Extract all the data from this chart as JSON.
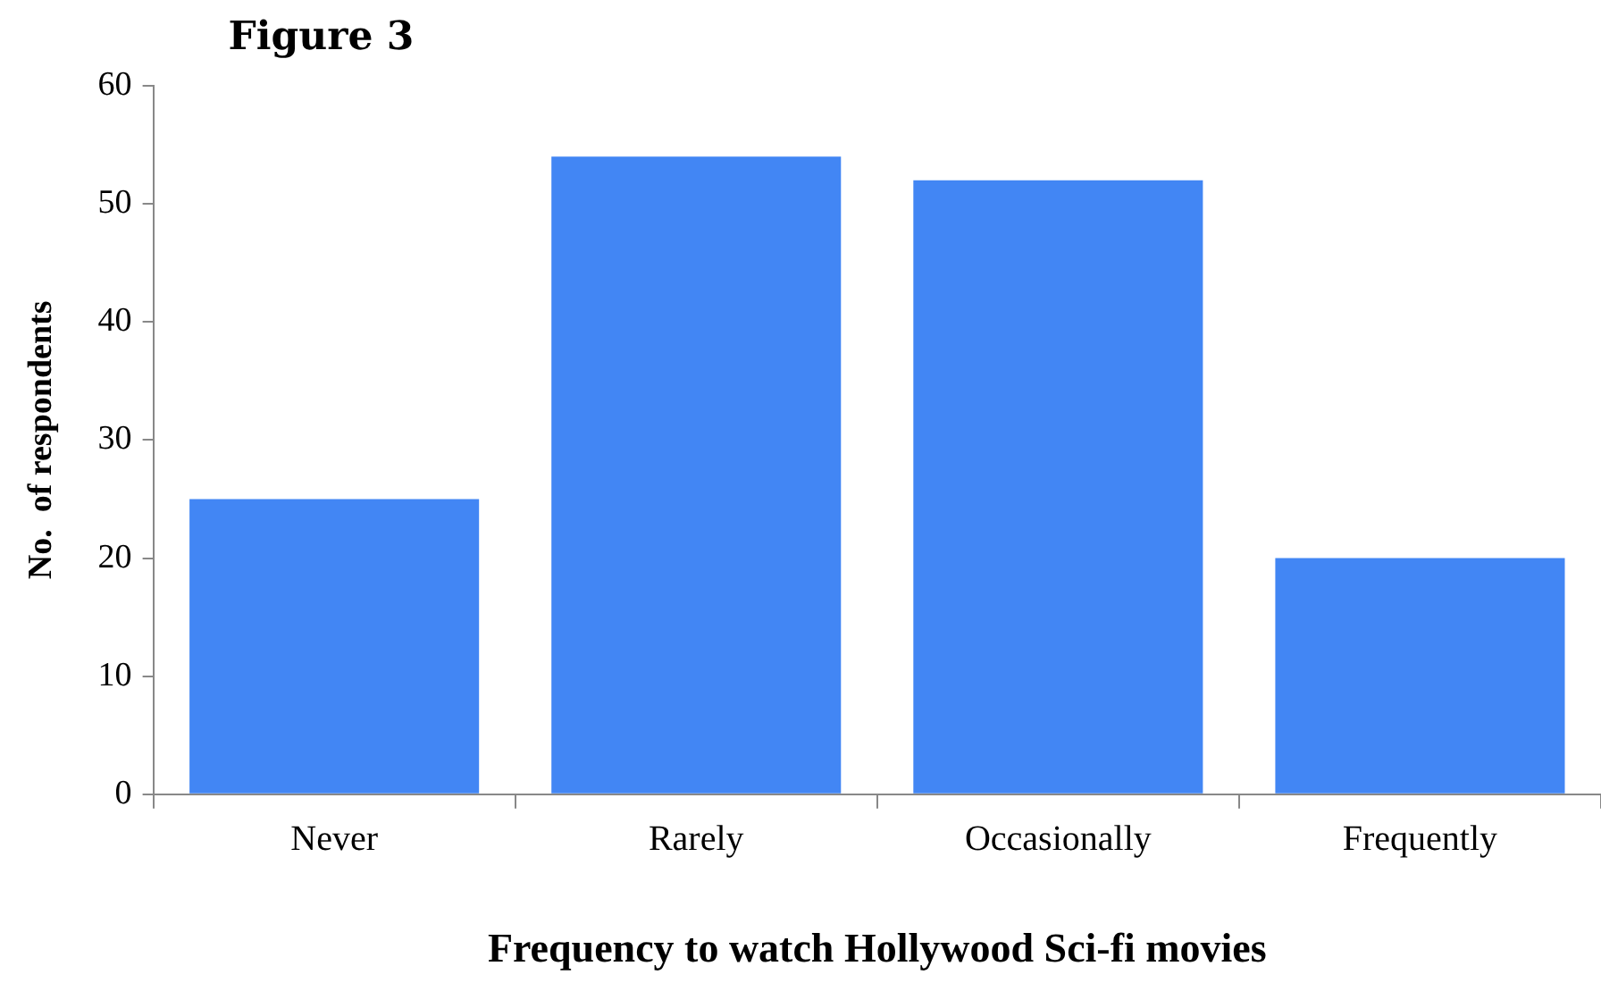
{
  "chart_data": {
    "type": "bar",
    "title": "Figure 3",
    "xlabel": "Frequency to watch Hollywood Sci-fi movies",
    "ylabel": "No.  of respondents",
    "categories": [
      "Never",
      "Rarely",
      "Occasionally",
      "Frequently"
    ],
    "values": [
      25,
      54,
      52,
      20
    ],
    "color": "#4286f4",
    "ylim": [
      0,
      60
    ],
    "yticks": [
      0,
      10,
      20,
      30,
      40,
      50,
      60
    ],
    "legend": false
  }
}
